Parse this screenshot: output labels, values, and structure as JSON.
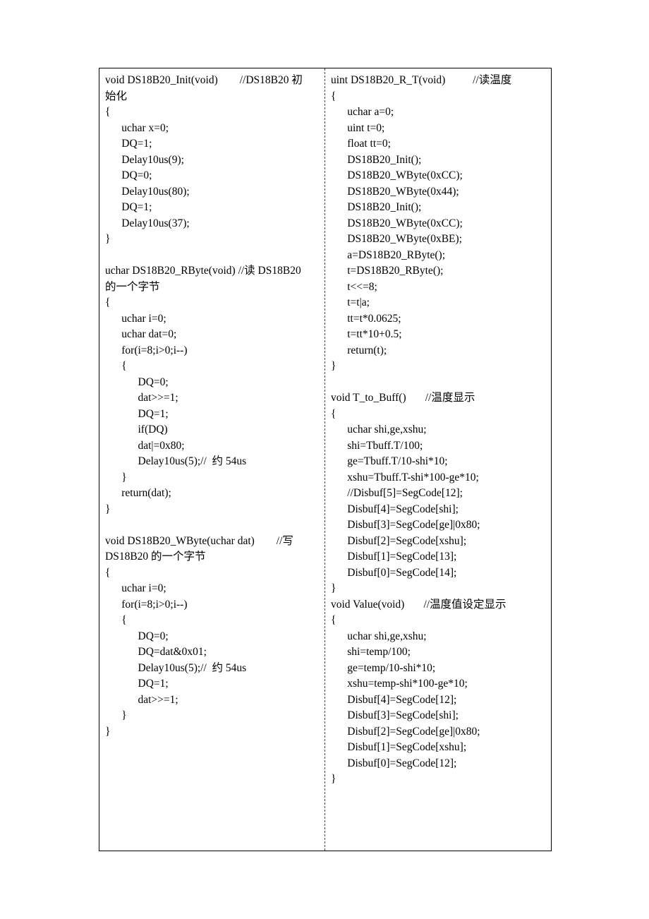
{
  "code": {
    "left": "void DS18B20_Init(void)        //DS18B20 初\n始化\n{\n      uchar x=0;\n      DQ=1;\n      Delay10us(9);\n      DQ=0;\n      Delay10us(80);\n      DQ=1;\n      Delay10us(37);\n}\n\nuchar DS18B20_RByte(void) //读 DS18B20\n的一个字节\n{\n      uchar i=0;\n      uchar dat=0;\n      for(i=8;i>0;i--)\n      {\n            DQ=0;\n            dat>>=1;\n            DQ=1;\n            if(DQ)\n            dat|=0x80;\n            Delay10us(5);//  约 54us\n      }\n      return(dat);\n}\n\nvoid DS18B20_WByte(uchar dat)        //写\nDS18B20 的一个字节\n{\n      uchar i=0;\n      for(i=8;i>0;i--)\n      {\n            DQ=0;\n            DQ=dat&0x01;\n            Delay10us(5);//  约 54us\n            DQ=1;\n            dat>>=1;\n      }\n}",
    "right": "uint DS18B20_R_T(void)          //读温度\n{\n      uchar a=0;\n      uint t=0;\n      float tt=0;\n      DS18B20_Init();\n      DS18B20_WByte(0xCC);\n      DS18B20_WByte(0x44);\n      DS18B20_Init();\n      DS18B20_WByte(0xCC);\n      DS18B20_WByte(0xBE);\n      a=DS18B20_RByte();\n      t=DS18B20_RByte();\n      t<<=8;\n      t=t|a;\n      tt=t*0.0625;\n      t=tt*10+0.5;\n      return(t);\n}\n\nvoid T_to_Buff()       //温度显示\n{\n      uchar shi,ge,xshu;\n      shi=Tbuff.T/100;\n      ge=Tbuff.T/10-shi*10;\n      xshu=Tbuff.T-shi*100-ge*10;\n      //Disbuf[5]=SegCode[12];\n      Disbuf[4]=SegCode[shi];\n      Disbuf[3]=SegCode[ge]|0x80;\n      Disbuf[2]=SegCode[xshu];\n      Disbuf[1]=SegCode[13];\n      Disbuf[0]=SegCode[14];\n}\nvoid Value(void)       //温度值设定显示\n{\n      uchar shi,ge,xshu;\n      shi=temp/100;\n      ge=temp/10-shi*10;\n      xshu=temp-shi*100-ge*10;\n      Disbuf[4]=SegCode[12];\n      Disbuf[3]=SegCode[shi];\n      Disbuf[2]=SegCode[ge]|0x80;\n      Disbuf[1]=SegCode[xshu];\n      Disbuf[0]=SegCode[12];\n}"
  }
}
